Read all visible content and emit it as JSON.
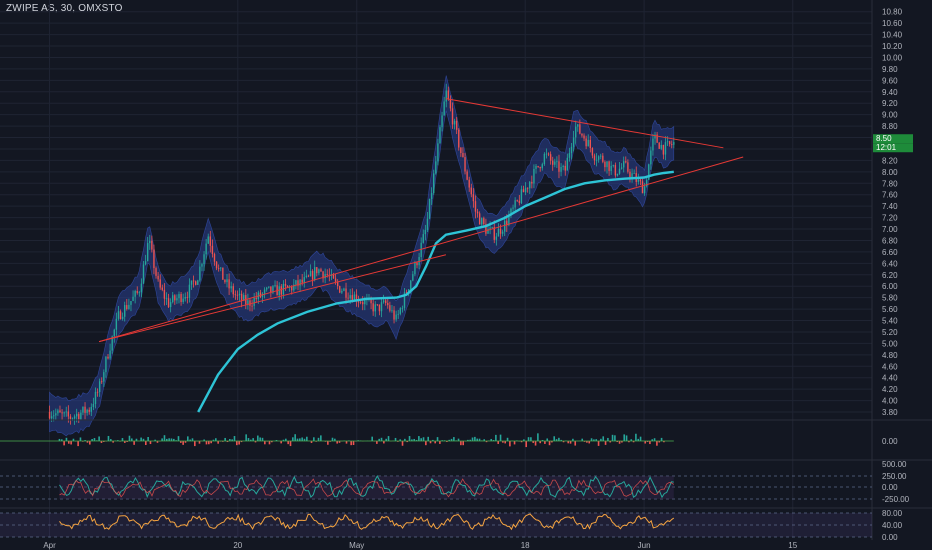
{
  "title": "ZWIPE AS, 30, OMXSTO",
  "colors": {
    "background": "#131722",
    "grid": "#1f2433",
    "up": "#26a69a",
    "down": "#ef5350",
    "ema": "#2ec4d6",
    "band_fill": "#2a3f8f",
    "trendline": "#e53935",
    "oscillator": "#f4a340",
    "label_text": "#b2b5be",
    "price_badge": "#1e8b3a"
  },
  "price_labels": {
    "last_price": "8.50",
    "countdown": "12:01"
  },
  "chart_data": [
    {
      "type": "candlestick",
      "name": "price",
      "ylim": [
        3.7,
        11.0
      ],
      "yticks": [
        3.8,
        4.0,
        4.2,
        4.4,
        4.6,
        4.8,
        5.0,
        5.2,
        5.4,
        5.6,
        5.8,
        6.0,
        6.2,
        6.4,
        6.6,
        6.8,
        7.0,
        7.2,
        7.4,
        7.6,
        7.8,
        8.0,
        8.2,
        8.4,
        8.6,
        8.8,
        9.0,
        9.2,
        9.4,
        9.6,
        9.8,
        10.0,
        10.2,
        10.4,
        10.6,
        10.8
      ],
      "ytick_labels": [
        "3.80",
        "4.00",
        "4.20",
        "4.40",
        "4.60",
        "4.80",
        "5.00",
        "5.20",
        "5.40",
        "5.60",
        "5.80",
        "6.00",
        "6.20",
        "6.40",
        "6.60",
        "6.80",
        "7.00",
        "7.20",
        "7.40",
        "7.60",
        "7.80",
        "8.00",
        "8.20",
        "8.40",
        "8.60",
        "8.80",
        "9.00",
        "9.20",
        "9.40",
        "9.60",
        "9.80",
        "10.00",
        "10.20",
        "10.40",
        "10.60",
        "10.80"
      ],
      "x_ticks": [
        "Apr",
        "20",
        "May",
        "18",
        "Jun",
        "15"
      ],
      "x_tick_positions": [
        0.0,
        19,
        31,
        48,
        60,
        75
      ],
      "x_range": [
        -5,
        83
      ],
      "price_path_t": [
        0,
        2,
        4,
        5,
        6,
        7,
        9,
        10,
        11,
        12,
        14,
        15,
        16,
        17,
        18,
        19,
        20,
        22,
        24,
        26,
        27,
        28,
        29,
        30,
        31,
        33,
        34,
        35,
        36,
        37,
        38,
        39,
        40,
        41,
        42,
        43,
        44,
        45,
        46,
        47,
        48,
        49,
        50,
        51,
        52,
        53,
        54,
        55,
        56,
        57,
        58,
        59,
        60,
        61,
        62,
        63
      ],
      "price_path_v": [
        3.8,
        3.7,
        3.85,
        4.2,
        4.9,
        5.5,
        5.9,
        6.8,
        6.0,
        5.7,
        5.9,
        6.2,
        6.9,
        6.3,
        6.0,
        5.8,
        5.7,
        5.9,
        5.95,
        6.1,
        6.3,
        6.2,
        6.0,
        5.9,
        5.8,
        5.6,
        5.7,
        5.4,
        5.9,
        6.4,
        7.0,
        8.2,
        9.4,
        8.7,
        8.0,
        7.3,
        7.0,
        6.9,
        7.1,
        7.4,
        7.7,
        8.0,
        8.3,
        8.1,
        8.0,
        8.8,
        8.6,
        8.3,
        8.2,
        8.0,
        8.1,
        7.9,
        7.7,
        8.6,
        8.4,
        8.5
      ],
      "ema_t": [
        15,
        17,
        19,
        21,
        23,
        26,
        29,
        32,
        35,
        36,
        37,
        38,
        39,
        40,
        42,
        44,
        46,
        48,
        50,
        52,
        54,
        56,
        58,
        60,
        61,
        62,
        63
      ],
      "ema_v": [
        3.8,
        4.45,
        4.9,
        5.15,
        5.35,
        5.55,
        5.7,
        5.78,
        5.8,
        5.85,
        6.0,
        6.35,
        6.75,
        6.9,
        6.97,
        7.05,
        7.2,
        7.4,
        7.55,
        7.7,
        7.8,
        7.85,
        7.88,
        7.9,
        7.95,
        7.98,
        8.0
      ],
      "trendlines": [
        {
          "points": [
            [
              5,
              5.03
            ],
            [
              70,
              8.26
            ]
          ]
        },
        {
          "points": [
            [
              40,
              9.28
            ],
            [
              68,
              8.42
            ]
          ]
        },
        {
          "points": [
            [
              5,
              5.03
            ],
            [
              40,
              6.55
            ]
          ]
        }
      ]
    },
    {
      "type": "histogram",
      "name": "momentum",
      "ytick_labels": [
        "0.00"
      ]
    },
    {
      "type": "line",
      "name": "cci",
      "ytick_labels": [
        "500.00",
        "250.00",
        "0.00",
        "-250.00"
      ]
    },
    {
      "type": "line",
      "name": "oscillator",
      "ytick_labels": [
        "80.00",
        "40.00",
        "0.00"
      ]
    }
  ]
}
